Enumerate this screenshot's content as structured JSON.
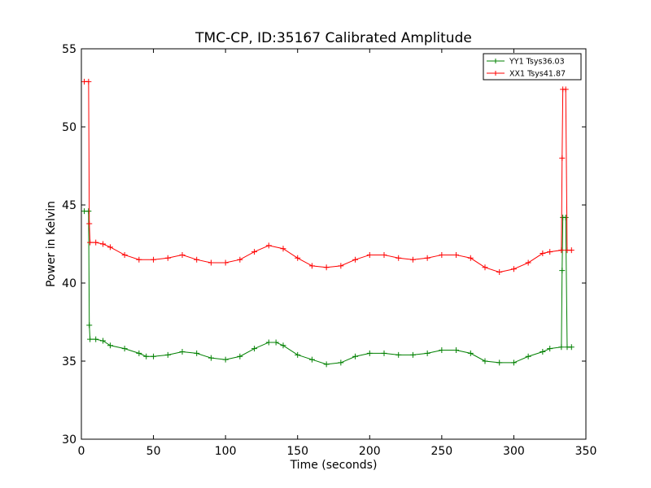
{
  "chart_data": {
    "type": "line",
    "title": "TMC-CP, ID:35167 Calibrated Amplitude",
    "xlabel": "Time (seconds)",
    "ylabel": "Power in Kelvin",
    "xlim": [
      0,
      350
    ],
    "ylim": [
      30,
      55
    ],
    "xticks": [
      0,
      50,
      100,
      150,
      200,
      250,
      300,
      350
    ],
    "yticks": [
      30,
      35,
      40,
      45,
      50,
      55
    ],
    "grid": false,
    "legend_position": "top-right",
    "series": [
      {
        "name": "YY1 Tsys36.03",
        "color": "#008000",
        "points": [
          [
            2,
            44.6
          ],
          [
            5,
            44.6
          ],
          [
            5.5,
            37.3
          ],
          [
            6,
            36.4
          ],
          [
            10,
            36.4
          ],
          [
            15,
            36.3
          ],
          [
            20,
            36.0
          ],
          [
            30,
            35.8
          ],
          [
            40,
            35.5
          ],
          [
            45,
            35.3
          ],
          [
            50,
            35.3
          ],
          [
            60,
            35.4
          ],
          [
            70,
            35.6
          ],
          [
            80,
            35.5
          ],
          [
            90,
            35.2
          ],
          [
            100,
            35.1
          ],
          [
            110,
            35.3
          ],
          [
            120,
            35.8
          ],
          [
            130,
            36.2
          ],
          [
            135,
            36.2
          ],
          [
            140,
            36.0
          ],
          [
            150,
            35.4
          ],
          [
            160,
            35.1
          ],
          [
            170,
            34.8
          ],
          [
            180,
            34.9
          ],
          [
            190,
            35.3
          ],
          [
            200,
            35.5
          ],
          [
            210,
            35.5
          ],
          [
            220,
            35.4
          ],
          [
            230,
            35.4
          ],
          [
            240,
            35.5
          ],
          [
            250,
            35.7
          ],
          [
            260,
            35.7
          ],
          [
            270,
            35.5
          ],
          [
            280,
            35.0
          ],
          [
            290,
            34.9
          ],
          [
            300,
            34.9
          ],
          [
            310,
            35.3
          ],
          [
            320,
            35.6
          ],
          [
            325,
            35.8
          ],
          [
            333,
            35.9
          ],
          [
            333.5,
            40.8
          ],
          [
            334,
            44.2
          ],
          [
            336,
            44.2
          ],
          [
            337,
            35.9
          ],
          [
            340,
            35.9
          ]
        ]
      },
      {
        "name": "XX1 Tsys41.87",
        "color": "#ff0000",
        "points": [
          [
            2,
            52.9
          ],
          [
            5,
            52.9
          ],
          [
            5.5,
            43.8
          ],
          [
            6,
            42.6
          ],
          [
            10,
            42.6
          ],
          [
            15,
            42.5
          ],
          [
            20,
            42.3
          ],
          [
            30,
            41.8
          ],
          [
            40,
            41.5
          ],
          [
            50,
            41.5
          ],
          [
            60,
            41.6
          ],
          [
            70,
            41.8
          ],
          [
            80,
            41.5
          ],
          [
            90,
            41.3
          ],
          [
            100,
            41.3
          ],
          [
            110,
            41.5
          ],
          [
            120,
            42.0
          ],
          [
            130,
            42.4
          ],
          [
            140,
            42.2
          ],
          [
            150,
            41.6
          ],
          [
            160,
            41.1
          ],
          [
            170,
            41.0
          ],
          [
            180,
            41.1
          ],
          [
            190,
            41.5
          ],
          [
            200,
            41.8
          ],
          [
            210,
            41.8
          ],
          [
            220,
            41.6
          ],
          [
            230,
            41.5
          ],
          [
            240,
            41.6
          ],
          [
            250,
            41.8
          ],
          [
            260,
            41.8
          ],
          [
            270,
            41.6
          ],
          [
            280,
            41.0
          ],
          [
            290,
            40.7
          ],
          [
            300,
            40.9
          ],
          [
            310,
            41.3
          ],
          [
            320,
            41.9
          ],
          [
            325,
            42.0
          ],
          [
            333,
            42.1
          ],
          [
            333.5,
            48.0
          ],
          [
            334,
            52.4
          ],
          [
            336,
            52.4
          ],
          [
            337,
            42.1
          ],
          [
            340,
            42.1
          ]
        ]
      }
    ]
  }
}
